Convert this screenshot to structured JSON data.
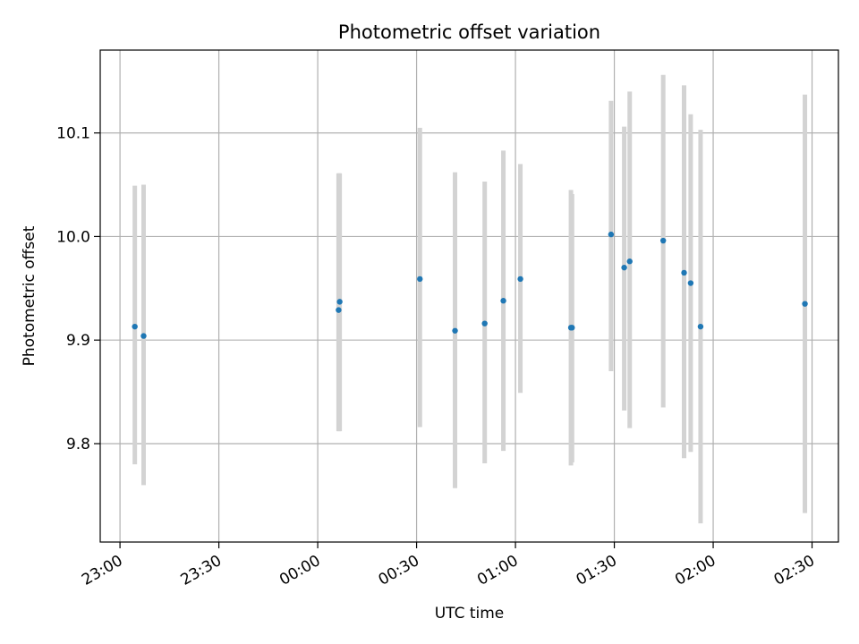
{
  "chart_data": {
    "type": "scatter",
    "title": "Photometric offset variation",
    "xlabel": "UTC time",
    "ylabel": "Photometric offset",
    "x_unit": "UTC time",
    "xlim": [
      "22:54",
      "02:38"
    ],
    "ylim": [
      9.705,
      10.18
    ],
    "grid": true,
    "x_ticks": [
      "23:00",
      "23:30",
      "00:00",
      "00:30",
      "01:00",
      "01:30",
      "02:00",
      "02:30"
    ],
    "y_ticks": [
      "9.8",
      "9.9",
      "10.0",
      "10.1"
    ],
    "colors": {
      "point": "#1f77b4",
      "errorbar": "#d3d3d3",
      "grid": "#b0b0b0"
    },
    "points": [
      {
        "time": "23:04:30",
        "y": 9.913,
        "ylow": 9.78,
        "yhigh": 10.049
      },
      {
        "time": "23:07:10",
        "y": 9.904,
        "ylow": 9.76,
        "yhigh": 10.05
      },
      {
        "time": "00:06:20",
        "y": 9.929,
        "ylow": 9.812,
        "yhigh": 10.061
      },
      {
        "time": "00:06:40",
        "y": 9.937,
        "ylow": 9.812,
        "yhigh": 10.061
      },
      {
        "time": "00:31:00",
        "y": 9.959,
        "ylow": 9.816,
        "yhigh": 10.105
      },
      {
        "time": "00:41:40",
        "y": 9.909,
        "ylow": 9.757,
        "yhigh": 10.062
      },
      {
        "time": "00:50:40",
        "y": 9.916,
        "ylow": 9.781,
        "yhigh": 10.053
      },
      {
        "time": "00:56:20",
        "y": 9.938,
        "ylow": 9.793,
        "yhigh": 10.083
      },
      {
        "time": "01:01:30",
        "y": 9.959,
        "ylow": 9.849,
        "yhigh": 10.07
      },
      {
        "time": "01:16:50",
        "y": 9.912,
        "ylow": 9.779,
        "yhigh": 10.045
      },
      {
        "time": "01:17:10",
        "y": 9.912,
        "ylow": 9.782,
        "yhigh": 10.041
      },
      {
        "time": "01:29:00",
        "y": 10.002,
        "ylow": 9.87,
        "yhigh": 10.131
      },
      {
        "time": "01:33:00",
        "y": 9.97,
        "ylow": 9.832,
        "yhigh": 10.106
      },
      {
        "time": "01:34:40",
        "y": 9.976,
        "ylow": 9.815,
        "yhigh": 10.14
      },
      {
        "time": "01:44:50",
        "y": 9.996,
        "ylow": 9.835,
        "yhigh": 10.156
      },
      {
        "time": "01:51:10",
        "y": 9.965,
        "ylow": 9.786,
        "yhigh": 10.146
      },
      {
        "time": "01:53:10",
        "y": 9.955,
        "ylow": 9.792,
        "yhigh": 10.118
      },
      {
        "time": "01:56:10",
        "y": 9.913,
        "ylow": 9.723,
        "yhigh": 10.103
      },
      {
        "time": "02:27:50",
        "y": 9.935,
        "ylow": 9.733,
        "yhigh": 10.137
      }
    ]
  }
}
